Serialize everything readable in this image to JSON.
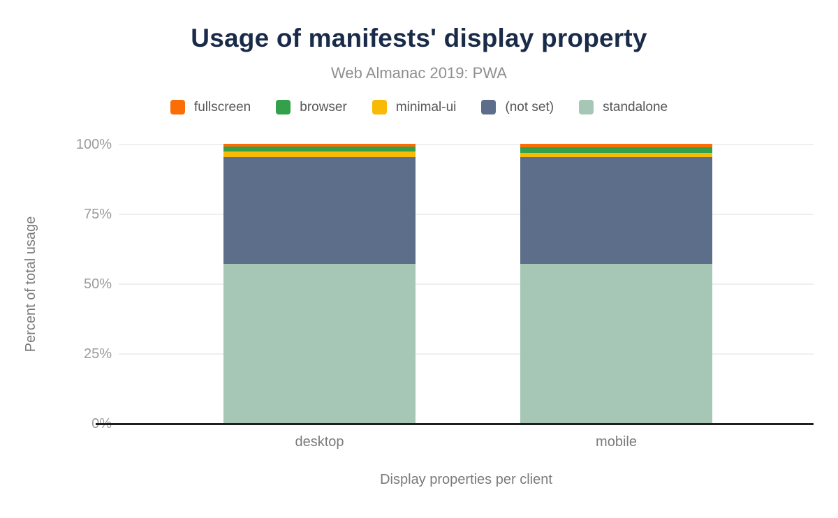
{
  "chart_data": {
    "type": "bar",
    "variant": "stacked-100-percent",
    "title": "Usage of manifests' display property",
    "subtitle": "Web Almanac 2019: PWA",
    "xlabel": "Display properties per client",
    "ylabel": "Percent of total usage",
    "categories": [
      "desktop",
      "mobile"
    ],
    "y_ticks": [
      "100%",
      "75%",
      "50%",
      "25%",
      "0%"
    ],
    "ylim": [
      0,
      100
    ],
    "grid": "horizontal",
    "legend_position": "top",
    "series": [
      {
        "name": "fullscreen",
        "color": "#fb6d05",
        "values": [
          1.1,
          1.2
        ]
      },
      {
        "name": "browser",
        "color": "#33a04a",
        "values": [
          1.7,
          2.0
        ]
      },
      {
        "name": "minimal-ui",
        "color": "#f9ba06",
        "values": [
          2.0,
          1.5
        ]
      },
      {
        "name": "(not set)",
        "color": "#5d6e8a",
        "values": [
          38.2,
          38.3
        ]
      },
      {
        "name": "standalone",
        "color": "#a6c7b6",
        "values": [
          57.0,
          57.0
        ]
      }
    ]
  },
  "colors": {
    "title": "#1a2b49",
    "subtitle": "#8f8f8f",
    "tick_text": "#9b9b9b",
    "axis_title_text": "#7a7a7a",
    "legend_text": "#565656",
    "gridline": "#efefef",
    "axis_line": "#1f1f1f",
    "background": "#ffffff"
  }
}
